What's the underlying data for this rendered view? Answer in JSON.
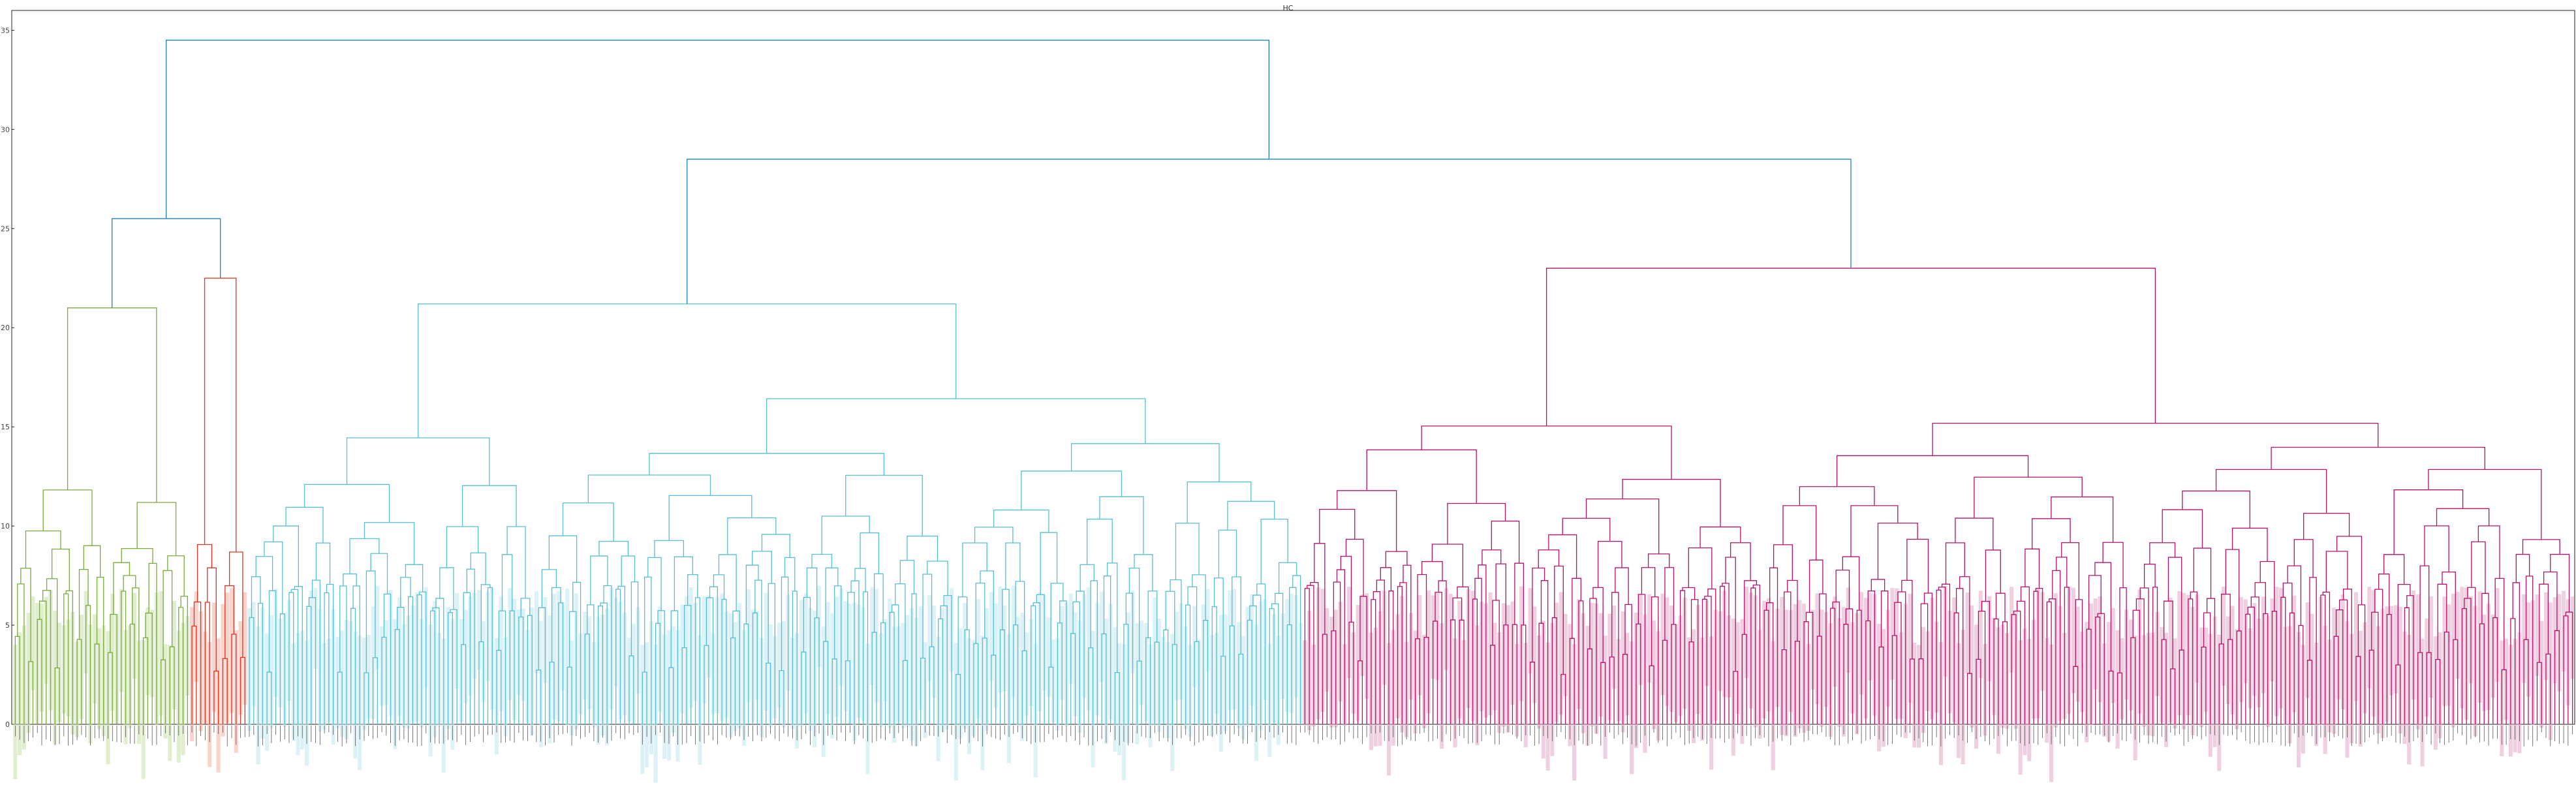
{
  "chart_data": {
    "type": "dendrogram",
    "title": "HC",
    "xlabel": "",
    "ylabel": "",
    "ylim": [
      0,
      36
    ],
    "yticks": [
      0,
      5,
      10,
      15,
      20,
      25,
      30,
      35
    ],
    "grid": false,
    "leaf_count": 580,
    "leaf_labels_note_visible": "dense rotated leaf labels (unreadable)",
    "clusters": [
      {
        "color": "#7aab3c",
        "fill": "#c8dea8",
        "leaf_start": 0,
        "leaf_end": 39
      },
      {
        "color": "#e0321e",
        "fill": "#f4b0a3",
        "leaf_start": 40,
        "leaf_end": 52
      },
      {
        "color": "#57bfd1",
        "fill": "#bfe7ef",
        "leaf_start": 53,
        "leaf_end": 291
      },
      {
        "color": "#b5136a",
        "fill": "#e2a9c8",
        "leaf_start": 292,
        "leaf_end": 579
      }
    ],
    "top_links": [
      {
        "name": "root",
        "height": 34.5,
        "color": "#1f82b4",
        "children": [
          "left-group",
          "right-group"
        ]
      },
      {
        "name": "right-group",
        "height": 28.5,
        "color": "#1f82b4",
        "children": [
          "cyan-cluster",
          "magenta-cluster"
        ]
      },
      {
        "name": "left-group",
        "height": 25.5,
        "color": "#1f82b4",
        "children": [
          "green-cluster",
          "red-cluster"
        ]
      },
      {
        "name": "magenta-cluster",
        "height": 23.0,
        "color": "#b5136a"
      },
      {
        "name": "red-cluster",
        "height": 22.5,
        "color": "#e0321e"
      },
      {
        "name": "cyan-cluster",
        "height": 21.2,
        "color": "#57bfd1"
      },
      {
        "name": "green-cluster",
        "height": 21.0,
        "color": "#7aab3c"
      }
    ]
  }
}
